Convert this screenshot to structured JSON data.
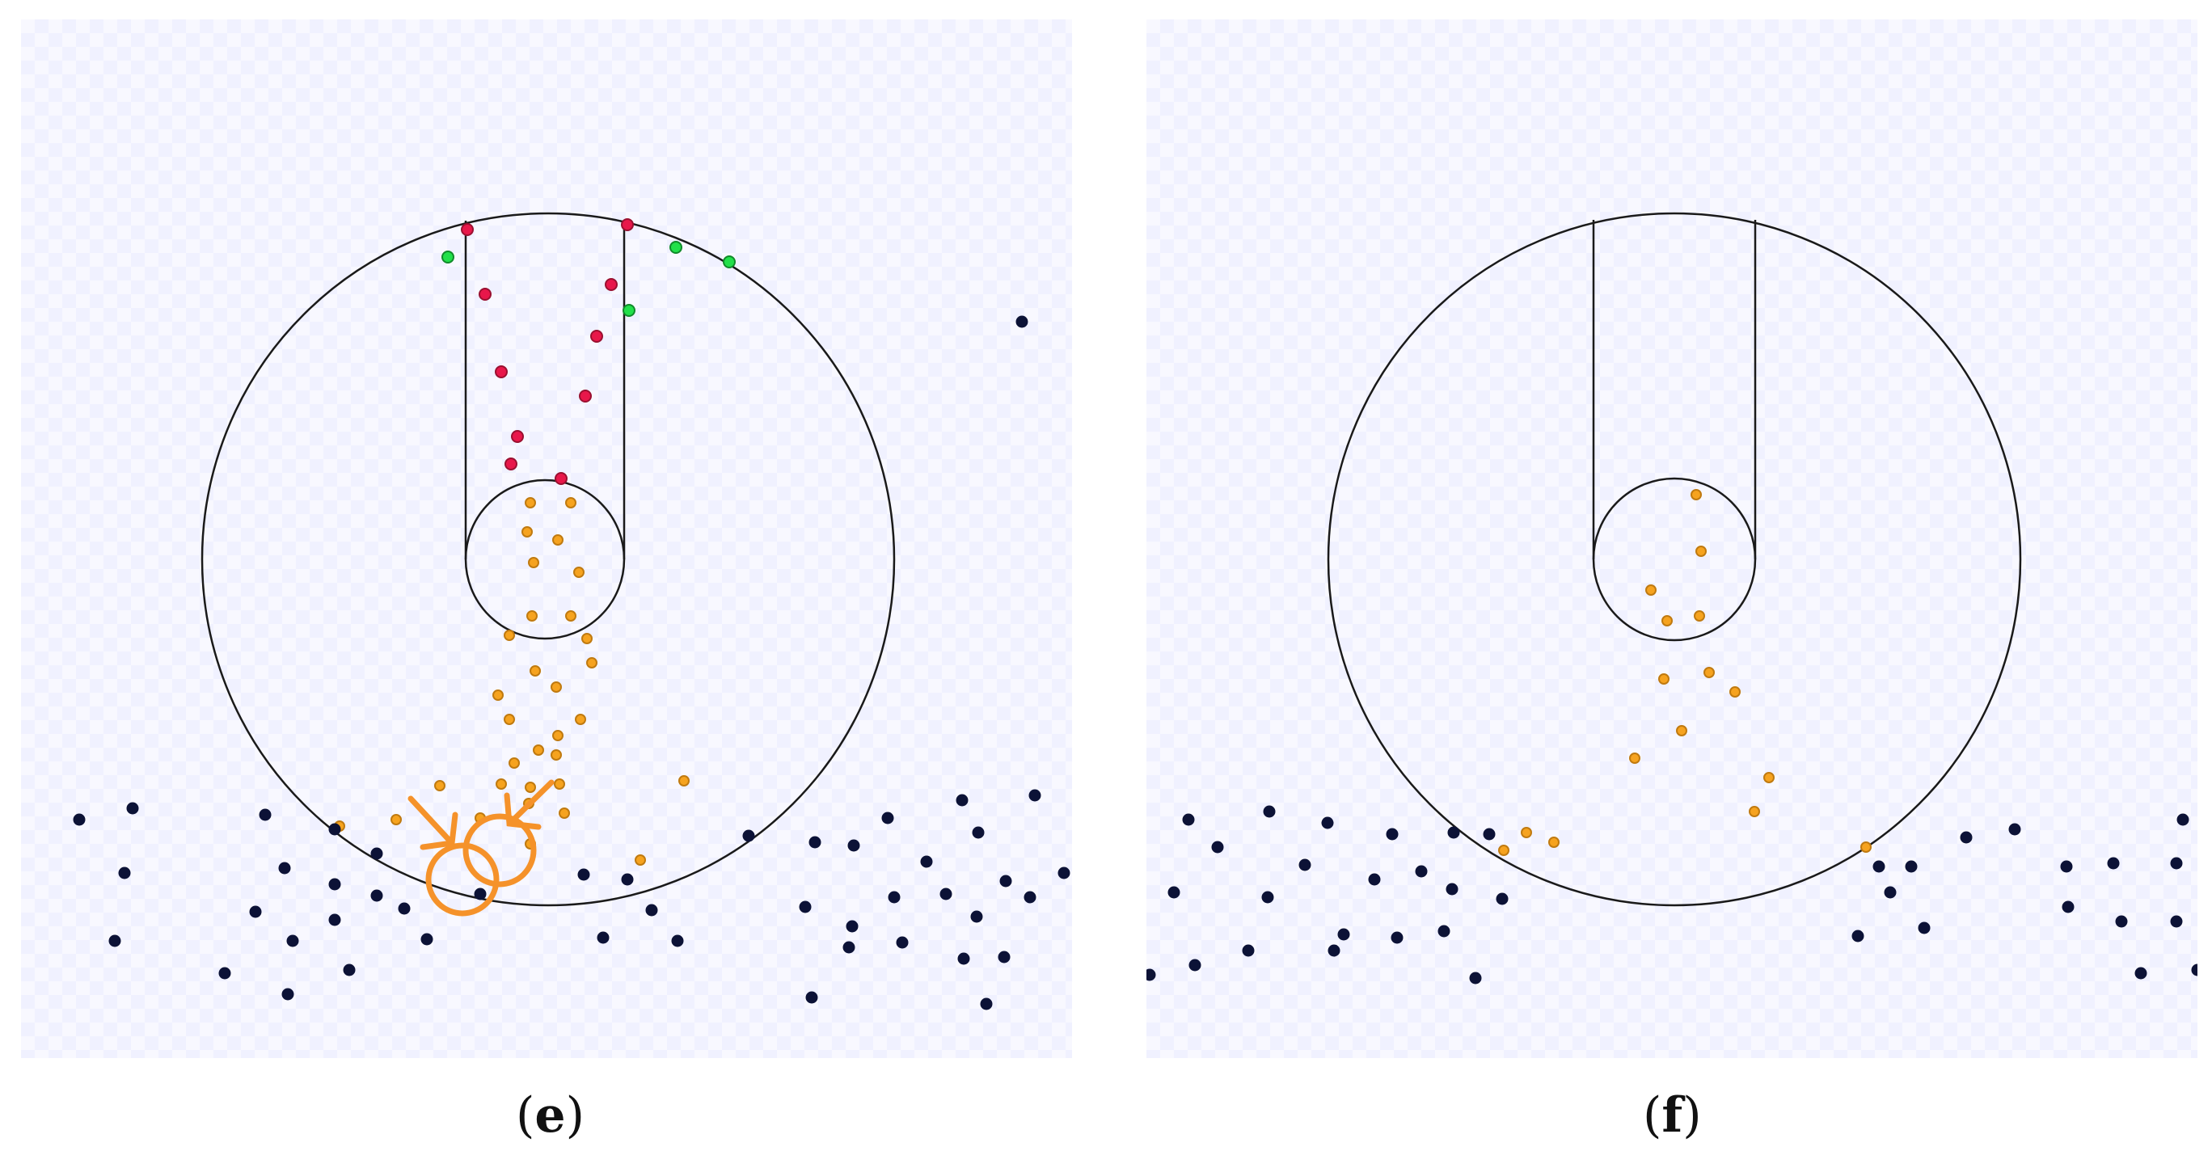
{
  "captions": {
    "e": "e",
    "f": "f"
  },
  "colors": {
    "outline": "#1a1a1a",
    "red_particle": "#e8174a",
    "green_particle": "#22e04a",
    "orange_particle": "#f6a31f",
    "dark_particle": "#0c1236",
    "highlight": "#f5922a",
    "panel_bg": "#f8f8ff"
  },
  "icons": {
    "highlight_marker": "orange-circle-with-arrow"
  }
}
